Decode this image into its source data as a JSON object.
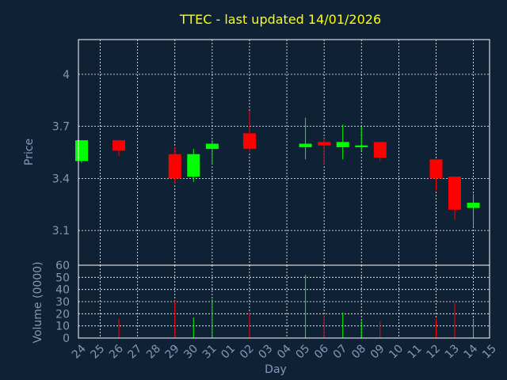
{
  "title": "TTEC - last updated 14/01/2026",
  "colors": {
    "background": "#0f2135",
    "frame": "#ffffff",
    "grid": "#ffffff",
    "text": "#7f9bb8",
    "title": "#ffff00",
    "up": "#00ff00",
    "down": "#ff0000"
  },
  "chart_data": [
    {
      "type": "candlestick",
      "ylabel": "Price",
      "ylim": [
        2.9,
        4.2
      ],
      "yticks": [
        "3.1",
        "3.4",
        "3.7",
        "4"
      ],
      "grid": true,
      "x": [
        "24",
        "25",
        "26",
        "27",
        "28",
        "29",
        "30",
        "31",
        "01",
        "02",
        "03",
        "04",
        "05",
        "06",
        "07",
        "08",
        "09",
        "10",
        "11",
        "12",
        "13",
        "14",
        "15"
      ],
      "candles": [
        {
          "x": "24",
          "open": 3.5,
          "high": 3.62,
          "low": 3.49,
          "close": 3.62
        },
        {
          "x": "26",
          "open": 3.62,
          "high": 3.62,
          "low": 3.53,
          "close": 3.56
        },
        {
          "x": "29",
          "open": 3.54,
          "high": 3.58,
          "low": 3.37,
          "close": 3.4
        },
        {
          "x": "30",
          "open": 3.41,
          "high": 3.57,
          "low": 3.38,
          "close": 3.54
        },
        {
          "x": "31",
          "open": 3.57,
          "high": 3.62,
          "low": 3.48,
          "close": 3.6
        },
        {
          "x": "02",
          "open": 3.66,
          "high": 3.79,
          "low": 3.55,
          "close": 3.57
        },
        {
          "x": "05",
          "open": 3.58,
          "high": 3.75,
          "low": 3.51,
          "close": 3.6
        },
        {
          "x": "06",
          "open": 3.61,
          "high": 3.63,
          "low": 3.48,
          "close": 3.59
        },
        {
          "x": "07",
          "open": 3.58,
          "high": 3.71,
          "low": 3.51,
          "close": 3.61
        },
        {
          "x": "08",
          "open": 3.58,
          "high": 3.7,
          "low": 3.56,
          "close": 3.59
        },
        {
          "x": "09",
          "open": 3.61,
          "high": 3.61,
          "low": 3.5,
          "close": 3.52
        },
        {
          "x": "12",
          "open": 3.51,
          "high": 3.51,
          "low": 3.33,
          "close": 3.4
        },
        {
          "x": "13",
          "open": 3.41,
          "high": 3.41,
          "low": 3.16,
          "close": 3.22
        },
        {
          "x": "14",
          "open": 3.23,
          "high": 3.31,
          "low": 3.12,
          "close": 3.26
        }
      ]
    },
    {
      "type": "bar",
      "ylabel": "Volume (0000)",
      "ylim": [
        0,
        60
      ],
      "yticks": [
        "0",
        "10",
        "20",
        "30",
        "40",
        "50",
        "60"
      ],
      "xlabel": "Day",
      "grid": true,
      "bars": [
        {
          "x": "26",
          "value": 16,
          "color": "down"
        },
        {
          "x": "29",
          "value": 31,
          "color": "down"
        },
        {
          "x": "30",
          "value": 17,
          "color": "up"
        },
        {
          "x": "31",
          "value": 32,
          "color": "up"
        },
        {
          "x": "02",
          "value": 21,
          "color": "down"
        },
        {
          "x": "05",
          "value": 52,
          "color": "up"
        },
        {
          "x": "06",
          "value": 19,
          "color": "down"
        },
        {
          "x": "07",
          "value": 21,
          "color": "up"
        },
        {
          "x": "08",
          "value": 14,
          "color": "up"
        },
        {
          "x": "09",
          "value": 14,
          "color": "down"
        },
        {
          "x": "12",
          "value": 16,
          "color": "down"
        },
        {
          "x": "13",
          "value": 29,
          "color": "down"
        },
        {
          "x": "14",
          "value": 16,
          "color": "up"
        }
      ]
    }
  ]
}
